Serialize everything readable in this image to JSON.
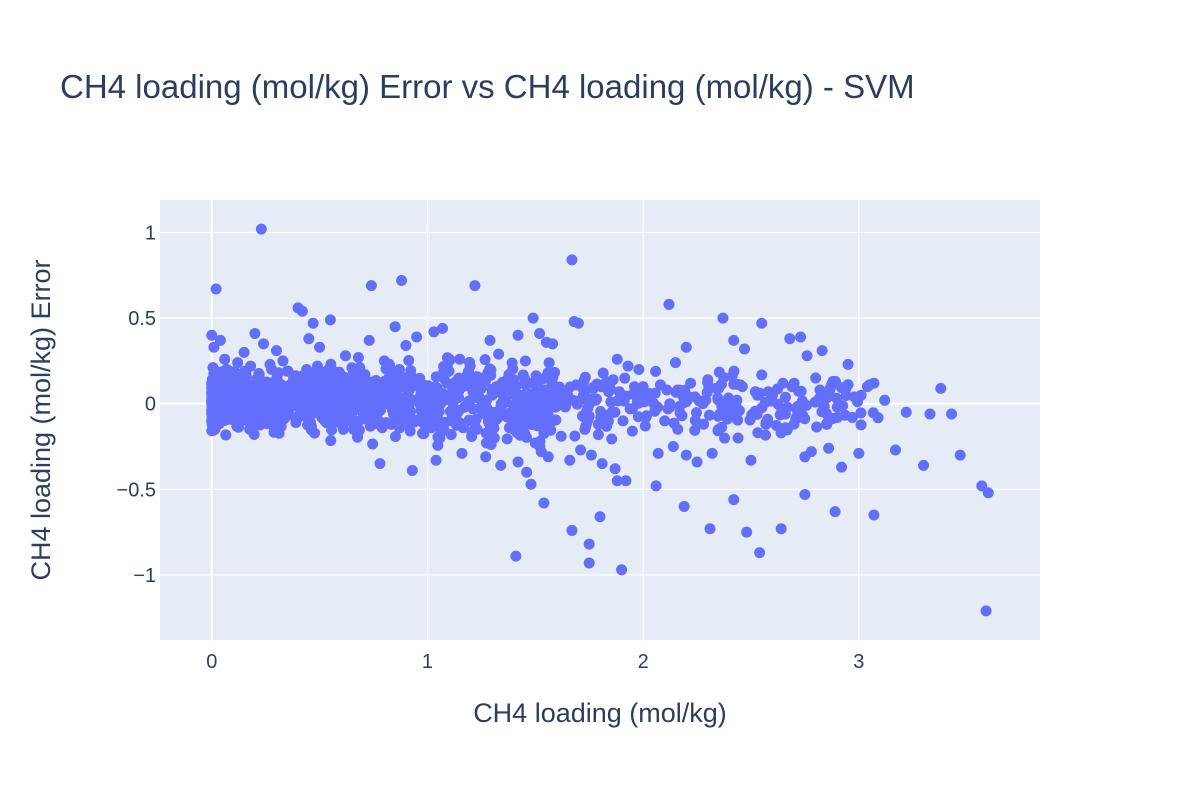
{
  "chart_data": {
    "type": "scatter",
    "title": "CH4 loading (mol/kg) Error vs CH4 loading (mol/kg) - SVM",
    "xlabel": "CH4 loading (mol/kg)",
    "ylabel": "CH4 loading (mol/kg) Error",
    "xlim": [
      -0.24,
      3.84
    ],
    "ylim": [
      -1.38,
      1.19
    ],
    "x_ticks": [
      0,
      1,
      2,
      3
    ],
    "x_tick_labels": [
      "0",
      "1",
      "2",
      "3"
    ],
    "y_ticks": [
      -1,
      -0.5,
      0,
      0.5,
      1
    ],
    "y_tick_labels": [
      "−1",
      "−0.5",
      "0",
      "0.5",
      "1"
    ],
    "grid": true,
    "colors": {
      "plot_bg": "#e5ecf6",
      "grid": "#ffffff",
      "marker": "#636efa",
      "text": "#2a3f5f"
    },
    "series": [
      {
        "x": [
          0.23,
          0.02,
          1.67,
          0.88,
          1.22,
          0.74,
          0.4,
          0.42,
          0.55,
          0.47,
          0.85,
          0.2,
          0.24,
          1.03,
          0.15,
          0.3,
          0.04,
          0.0,
          0.01,
          0.06,
          0.12,
          0.18,
          0.33,
          0.45,
          0.5,
          0.62,
          0.68,
          0.73,
          0.8,
          0.9,
          0.95,
          1.07,
          1.15,
          1.29,
          1.33,
          1.42,
          1.49,
          1.52,
          1.58,
          1.68,
          1.7,
          1.88,
          1.93,
          1.98,
          2.12,
          2.15,
          2.2,
          2.37,
          2.42,
          2.47,
          2.55,
          2.68,
          2.73,
          2.76,
          2.83,
          2.95,
          3.07,
          3.38,
          1.5,
          1.4,
          1.32,
          1.28,
          1.18,
          1.1,
          0.98,
          0.93,
          0.87,
          0.82,
          0.71,
          0.65,
          0.57,
          0.52,
          0.49,
          0.44,
          0.38,
          0.35,
          0.27,
          0.22,
          0.16,
          0.08,
          0.1,
          0.14,
          0.07,
          0.05,
          0.03,
          0.0,
          0.01,
          0.02,
          0.0,
          0.11,
          0.19,
          0.26,
          0.31,
          0.37,
          0.43,
          0.48,
          0.53,
          0.58,
          0.63,
          0.69,
          0.76,
          0.83,
          0.89,
          0.97,
          1.02,
          1.08,
          1.13,
          1.19,
          1.24,
          1.3,
          1.36,
          1.44,
          1.55,
          1.6,
          1.65,
          1.72,
          1.78,
          1.84,
          1.9,
          1.96,
          2.03,
          2.08,
          2.16,
          2.24,
          2.3,
          2.35,
          2.46,
          2.52,
          2.6,
          2.7,
          2.8,
          2.88,
          2.98,
          3.04,
          3.12,
          3.22,
          3.33,
          3.43,
          0.78,
          0.93,
          1.04,
          1.16,
          1.27,
          1.34,
          1.42,
          1.46,
          1.48,
          1.56,
          1.66,
          1.71,
          1.76,
          1.81,
          1.87,
          1.92,
          2.07,
          2.14,
          2.2,
          2.25,
          2.32,
          2.44,
          2.5,
          2.64,
          2.75,
          2.78,
          2.86,
          2.92,
          3.0,
          3.17,
          3.3,
          3.47,
          3.57,
          3.6,
          3.59,
          1.75,
          1.9,
          1.41,
          1.75,
          2.54,
          2.64,
          2.48,
          2.31,
          1.67,
          2.89,
          3.07,
          2.42,
          2.19,
          2.06,
          1.54,
          1.88,
          1.8,
          2.75,
          0.04,
          0.06,
          0.09,
          0.13,
          0.17,
          0.21,
          0.25,
          0.29,
          0.34,
          0.39,
          0.46,
          0.51,
          0.56,
          0.61,
          0.66,
          0.72,
          0.79,
          0.86,
          0.92,
          0.99,
          1.05,
          1.11,
          1.17,
          1.23,
          1.31,
          1.38,
          1.45,
          1.53,
          1.62,
          1.73,
          1.82,
          1.95,
          2.01,
          2.1,
          2.28,
          2.39,
          2.57,
          2.66,
          2.85,
          2.97,
          0.0,
          0.02,
          0.05,
          0.08,
          0.12,
          0.16,
          0.2,
          0.24,
          0.28,
          0.32,
          0.36,
          0.41,
          0.46,
          0.5,
          0.54,
          0.59,
          0.64,
          0.7,
          0.75,
          0.81,
          0.88,
          0.94,
          1.0,
          1.06,
          1.12,
          1.2,
          1.26,
          1.35,
          1.43,
          1.5,
          1.57,
          1.64,
          1.74,
          1.85,
          1.94,
          2.05,
          2.18,
          2.29,
          2.4,
          2.53,
          2.71,
          2.9,
          0.03,
          0.07,
          0.11,
          0.15,
          0.19,
          0.23,
          0.27,
          0.31,
          0.35,
          0.4,
          0.45,
          0.49,
          0.53,
          0.57,
          0.62,
          0.67,
          0.72,
          0.77,
          0.84,
          0.91,
          0.96,
          1.01,
          1.09,
          1.14,
          1.21,
          1.25,
          1.3,
          1.37,
          1.39,
          1.47,
          1.51,
          1.59,
          1.63,
          1.69,
          1.77,
          1.83,
          1.89,
          2.0,
          2.11,
          2.22,
          2.34,
          2.45,
          2.58,
          2.69,
          2.82,
          2.94,
          3.05
        ],
        "y": [
          1.02,
          0.67,
          0.84,
          0.72,
          0.69,
          0.69,
          0.56,
          0.54,
          0.49,
          0.47,
          0.45,
          0.41,
          0.35,
          0.42,
          0.3,
          0.31,
          0.37,
          0.4,
          0.33,
          0.26,
          0.24,
          0.22,
          0.25,
          0.38,
          0.33,
          0.28,
          0.27,
          0.37,
          0.25,
          0.34,
          0.39,
          0.44,
          0.26,
          0.37,
          0.29,
          0.4,
          0.5,
          0.41,
          0.35,
          0.48,
          0.47,
          0.26,
          0.22,
          0.2,
          0.58,
          0.24,
          0.33,
          0.5,
          0.37,
          0.32,
          0.47,
          0.38,
          0.39,
          0.28,
          0.31,
          0.23,
          0.12,
          0.09,
          0.12,
          0.14,
          0.1,
          0.18,
          0.16,
          0.19,
          0.11,
          0.13,
          0.2,
          0.15,
          0.17,
          0.21,
          0.18,
          0.14,
          0.22,
          0.2,
          0.15,
          0.19,
          0.23,
          0.17,
          0.16,
          0.18,
          0.12,
          0.14,
          0.2,
          0.15,
          0.1,
          0.12,
          0.08,
          0.05,
          0.02,
          -0.02,
          0.04,
          0.06,
          0.09,
          0.07,
          0.03,
          0.05,
          0.06,
          0.08,
          0.04,
          0.02,
          0.07,
          0.05,
          0.03,
          0.06,
          0.02,
          0.04,
          0.05,
          0.01,
          0.03,
          0.06,
          0.02,
          -0.01,
          0.08,
          0.03,
          0.05,
          0.09,
          0.02,
          0.07,
          0.04,
          0.1,
          0.06,
          0.11,
          0.08,
          0.04,
          0.14,
          0.09,
          0.1,
          0.07,
          0.05,
          0.12,
          0.15,
          0.13,
          0.04,
          0.1,
          0.02,
          -0.05,
          -0.06,
          -0.06,
          -0.35,
          -0.39,
          -0.33,
          -0.29,
          -0.31,
          -0.36,
          -0.34,
          -0.4,
          -0.47,
          -0.31,
          -0.33,
          -0.27,
          -0.3,
          -0.35,
          -0.38,
          -0.45,
          -0.29,
          -0.25,
          -0.3,
          -0.34,
          -0.29,
          -0.2,
          -0.33,
          -0.17,
          -0.31,
          -0.28,
          -0.26,
          -0.37,
          -0.29,
          -0.27,
          -0.36,
          -0.3,
          -0.48,
          -0.52,
          -1.21,
          -0.82,
          -0.97,
          -0.89,
          -0.93,
          -0.87,
          -0.73,
          -0.75,
          -0.73,
          -0.74,
          -0.63,
          -0.65,
          -0.56,
          -0.6,
          -0.48,
          -0.58,
          -0.45,
          -0.66,
          -0.53,
          -0.03,
          -0.05,
          -0.08,
          -0.1,
          -0.06,
          -0.12,
          -0.09,
          -0.14,
          -0.07,
          -0.11,
          -0.13,
          -0.08,
          -0.1,
          -0.15,
          -0.12,
          -0.09,
          -0.14,
          -0.11,
          -0.16,
          -0.13,
          -0.1,
          -0.18,
          -0.12,
          -0.15,
          -0.2,
          -0.14,
          -0.17,
          -0.12,
          -0.19,
          -0.15,
          -0.11,
          -0.16,
          -0.13,
          -0.1,
          -0.12,
          -0.09,
          -0.11,
          -0.14,
          -0.12,
          -0.08,
          -0.1,
          -0.02,
          0.0,
          -0.03,
          0.01,
          -0.02,
          0.02,
          -0.04,
          0.0,
          -0.01,
          0.03,
          -0.03,
          0.01,
          -0.05,
          0.02,
          0.0,
          -0.02,
          0.01,
          -0.04,
          0.0,
          -0.03,
          0.02,
          -0.01,
          0.0,
          -0.05,
          0.02,
          -0.03,
          0.01,
          -0.04,
          0.0,
          -0.02,
          0.03,
          -0.06,
          0.01,
          -0.03,
          0.0,
          -0.07,
          0.02,
          -0.04,
          0.05,
          -0.08,
          -0.02,
          0.06,
          0.07,
          0.1,
          0.04,
          0.11,
          0.08,
          0.06,
          0.12,
          0.09,
          0.05,
          0.13,
          0.07,
          0.1,
          0.06,
          0.11,
          0.08,
          0.12,
          0.09,
          0.07,
          0.13,
          0.1,
          0.06,
          0.12,
          0.08,
          0.11,
          0.09,
          0.05,
          0.14,
          0.08,
          0.12,
          0.07,
          0.1,
          0.06,
          0.11,
          0.09,
          0.13,
          0.07,
          0.1,
          0.08,
          0.12,
          0.09,
          0.11,
          0.07,
          0.1,
          0.08,
          0.09,
          0.11
        ]
      }
    ]
  }
}
